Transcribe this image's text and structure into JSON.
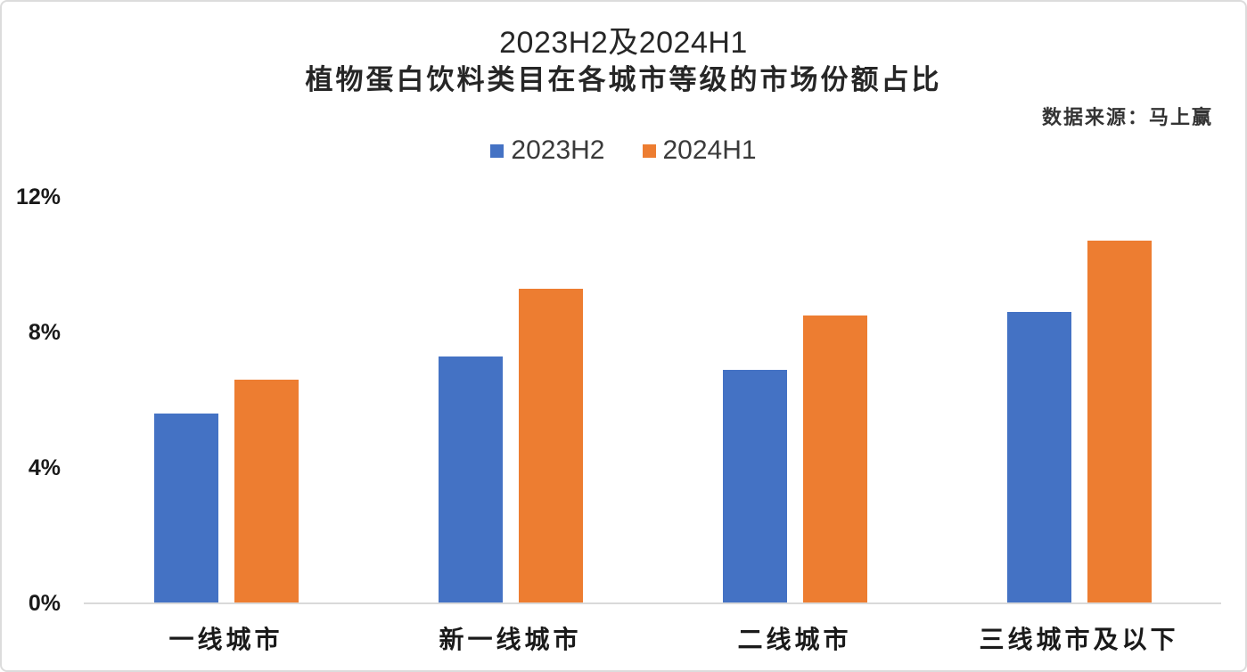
{
  "title": {
    "line1": "2023H2及2024H1",
    "line2": "植物蛋白饮料类目在各城市等级的市场份额占比"
  },
  "source": "数据来源：马上赢",
  "colors": {
    "series_2023h2": "#4472C4",
    "series_2024h1": "#ED7D31",
    "axis_line": "#D9D9D9"
  },
  "chart_data": {
    "type": "bar",
    "title": "2023H2及2024H1 植物蛋白饮料类目在各城市等级的市场份额占比",
    "categories": [
      "一线城市",
      "新一线城市",
      "二线城市",
      "三线城市及以下"
    ],
    "series": [
      {
        "name": "2023H2",
        "color": "#4472C4",
        "values": [
          5.6,
          7.3,
          6.9,
          8.6
        ]
      },
      {
        "name": "2024H1",
        "color": "#ED7D31",
        "values": [
          6.6,
          9.3,
          8.5,
          10.7
        ]
      }
    ],
    "xlabel": "",
    "ylabel": "",
    "yticks": [
      "0%",
      "4%",
      "8%",
      "12%"
    ],
    "ytick_values": [
      0,
      4,
      8,
      12
    ],
    "ylim": [
      0,
      12
    ],
    "grid": false,
    "legend_position": "top"
  }
}
